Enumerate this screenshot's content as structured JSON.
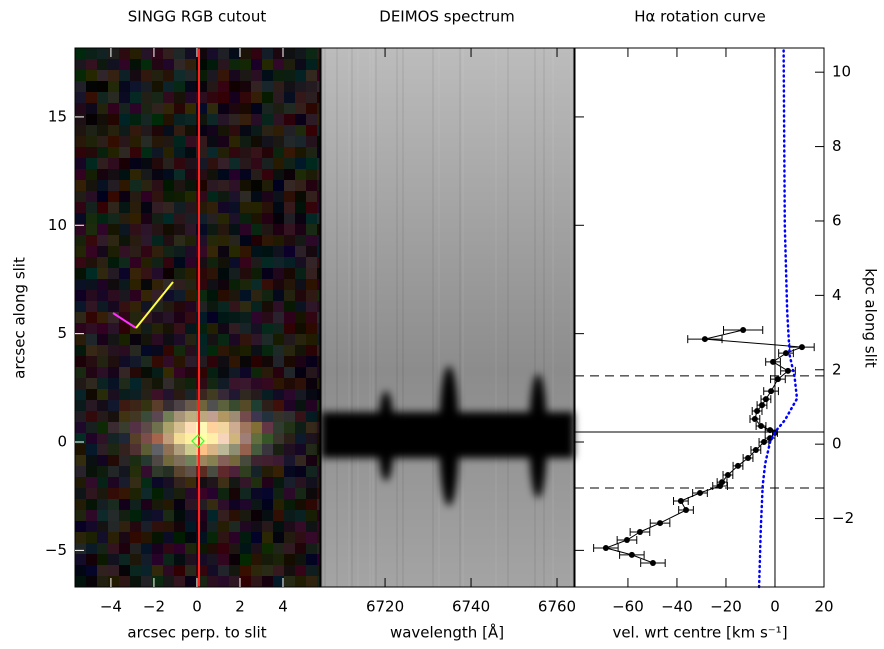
{
  "chart_data": [
    {
      "type": "image",
      "title": "SINGG RGB cutout",
      "xlabel": "arcsec perp. to slit",
      "ylabel": "arcsec along slit",
      "xlim": [
        -5.67,
        5.72
      ],
      "xticks": [
        {
          "value": -4,
          "label": "−4"
        },
        {
          "value": -2,
          "label": "−2"
        },
        0,
        2,
        4
      ],
      "ylim": [
        -6.69,
        18.18
      ],
      "yticks": [
        {
          "value": -5,
          "label": "−5"
        },
        0,
        5,
        10,
        15
      ]
    },
    {
      "type": "spectrum",
      "title": "DEIMOS spectrum",
      "xlabel": "wavelength [Å]",
      "xlim": [
        6705.1,
        6763.95
      ],
      "xticks": [
        6720,
        6740,
        6760
      ],
      "ylim": [
        -6.69,
        18.18
      ]
    },
    {
      "type": "scatter",
      "title": "Hα rotation curve",
      "xlabel": "vel. wrt centre [km s⁻¹]",
      "y2label": "kpc along slit",
      "xlim": [
        -81.6,
        20
      ],
      "xticks": [
        {
          "value": -60,
          "label": "−60"
        },
        {
          "value": -40,
          "label": "−40"
        },
        {
          "value": -20,
          "label": "−20"
        },
        0,
        20
      ],
      "ylim": [
        -6.69,
        18.18
      ],
      "y2lim": [
        -3.84,
        10.65
      ],
      "y2ticks": [
        {
          "value": -2,
          "label": "−2"
        },
        0,
        2,
        4,
        6,
        8,
        10
      ],
      "hlines": [
        {
          "y": 3.05,
          "dashed": true
        },
        {
          "y": 0.46,
          "dashed": false
        },
        {
          "y": -2.12,
          "dashed": true
        }
      ],
      "vline": 0,
      "series": [
        {
          "color": "#000000",
          "x": [
            -13,
            -28.6,
            11,
            4.5,
            -0.8,
            5.3,
            1.2,
            -1.6,
            -3.7,
            -5.3,
            -7.3,
            -8.2,
            -5.7,
            -2,
            0,
            -2,
            -4.5,
            -7.8,
            -11,
            -15.1,
            -19.2,
            -21.6,
            -22.4,
            -30.6,
            -38.4,
            -36.3,
            -46.9,
            -55.1,
            -60.4,
            -69,
            -58.4,
            -49.8
          ],
          "y": [
            5.17,
            4.75,
            4.38,
            4.1,
            3.7,
            3.28,
            2.9,
            2.35,
            1.98,
            1.7,
            1.43,
            1.06,
            0.74,
            0.55,
            0.42,
            0.18,
            0,
            -0.37,
            -0.74,
            -1.1,
            -1.52,
            -1.85,
            -2.03,
            -2.35,
            -2.72,
            -3.14,
            -3.74,
            -4.15,
            -4.52,
            -4.89,
            -5.21,
            -5.58
          ],
          "xerr": [
            8,
            7,
            5,
            3,
            3,
            3,
            3,
            3,
            2,
            2,
            2,
            2,
            2,
            2,
            1,
            2,
            2,
            2,
            2,
            2,
            2,
            2,
            3,
            3,
            3,
            3,
            4,
            4,
            4,
            5,
            5,
            5
          ]
        },
        {
          "color": "#0000ff",
          "dotted": true,
          "x": [
            -6.5,
            -5.8,
            -5,
            -4,
            -2,
            0,
            4,
            9,
            8,
            6,
            5,
            4,
            3.5
          ],
          "y": [
            -6.69,
            -4,
            -2,
            -1,
            0,
            0.46,
            1,
            2,
            3,
            4,
            6,
            10,
            18.18
          ]
        }
      ]
    }
  ]
}
